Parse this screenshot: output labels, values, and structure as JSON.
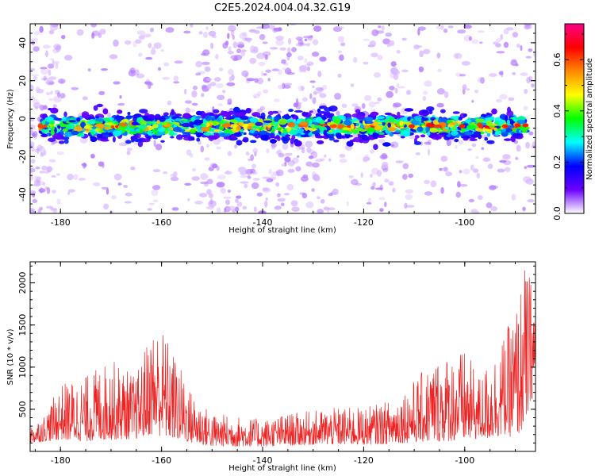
{
  "chart_data": [
    {
      "type": "heatmap",
      "title": "C2E5.2024.004.04.32.G19",
      "xlabel": "Height of straight line (km)",
      "ylabel": "Frequency (Hz)",
      "xlim": [
        -186,
        -86
      ],
      "ylim": [
        -50,
        50
      ],
      "xticks": [
        -180,
        -160,
        -140,
        -120,
        -100
      ],
      "yticks": [
        -40,
        -20,
        0,
        20,
        40
      ],
      "colorbar": {
        "label": "Normalized spectral amplitude",
        "range": [
          0,
          0.74
        ],
        "ticks": [
          0.0,
          0.2,
          0.4,
          0.6
        ],
        "colormap": [
          "#ffffff",
          "#6a00ff",
          "#0000ff",
          "#00ffff",
          "#00ff00",
          "#ffff00",
          "#ff8800",
          "#ff0000",
          "#ff0088"
        ]
      },
      "band": {
        "center_frequency": -4,
        "half_width": 6,
        "typical_amplitude_range": [
          0.15,
          0.7
        ]
      },
      "grid": false
    },
    {
      "type": "line",
      "xlabel": "Height of straight line (km)",
      "ylabel": "SNR (10 * v/v)",
      "xlim": [
        -186,
        -86
      ],
      "ylim": [
        0,
        2250
      ],
      "xticks": [
        -180,
        -160,
        -140,
        -120,
        -100
      ],
      "yticks": [
        500,
        1000,
        1500,
        2000
      ],
      "line_color": "#ee2222",
      "envelope": {
        "x": [
          -186,
          -183,
          -180,
          -175,
          -170,
          -165,
          -162,
          -160,
          -157,
          -154,
          -150,
          -145,
          -140,
          -135,
          -130,
          -125,
          -120,
          -115,
          -110,
          -105,
          -100,
          -97,
          -95,
          -92,
          -90,
          -88,
          -86
        ],
        "min": [
          100,
          120,
          140,
          120,
          140,
          150,
          200,
          180,
          140,
          100,
          60,
          60,
          60,
          70,
          80,
          80,
          80,
          90,
          110,
          120,
          130,
          150,
          150,
          200,
          150,
          300,
          800
        ],
        "max": [
          300,
          450,
          800,
          900,
          1100,
          900,
          1500,
          1500,
          1100,
          700,
          450,
          420,
          380,
          450,
          480,
          520,
          520,
          600,
          850,
          1150,
          1200,
          900,
          1100,
          1400,
          1700,
          2250,
          1900
        ]
      },
      "grid": false
    }
  ]
}
